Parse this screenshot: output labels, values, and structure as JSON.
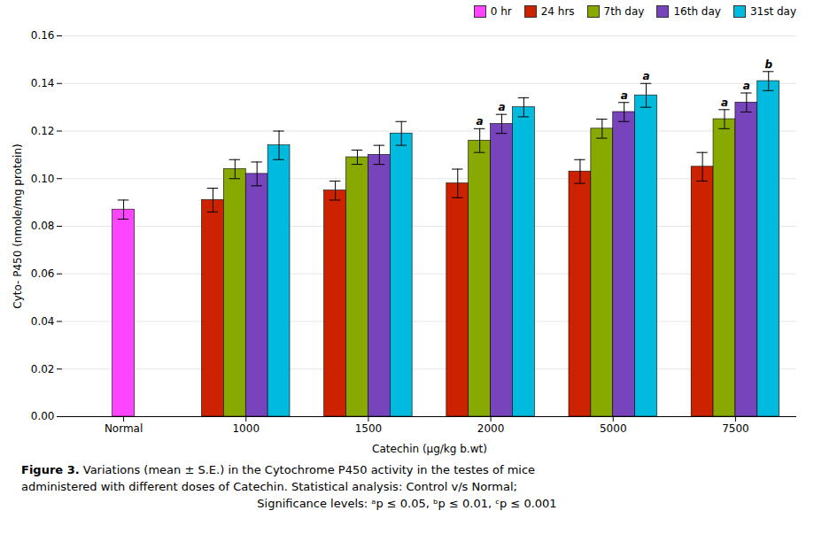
{
  "chart_data": {
    "type": "bar",
    "categories": [
      "Normal",
      "1000",
      "1500",
      "2000",
      "5000",
      "7500"
    ],
    "series": [
      {
        "name": "0 hr",
        "color": "#FF44FF",
        "values": [
          0.087,
          null,
          null,
          null,
          null,
          null
        ],
        "errors": [
          0.004,
          null,
          null,
          null,
          null,
          null
        ]
      },
      {
        "name": "24 hrs",
        "color": "#CC2200",
        "values": [
          null,
          0.091,
          0.095,
          0.098,
          0.103,
          0.105
        ],
        "errors": [
          null,
          0.005,
          0.004,
          0.006,
          0.005,
          0.006
        ]
      },
      {
        "name": "7th day",
        "color": "#88AA00",
        "values": [
          null,
          0.104,
          0.109,
          0.116,
          0.121,
          0.125
        ],
        "errors": [
          null,
          0.004,
          0.003,
          0.005,
          0.004,
          0.004
        ]
      },
      {
        "name": "16th day",
        "color": "#7744BB",
        "values": [
          null,
          0.102,
          0.11,
          0.123,
          0.128,
          0.132
        ],
        "errors": [
          null,
          0.005,
          0.004,
          0.004,
          0.004,
          0.004
        ]
      },
      {
        "name": "31st day",
        "color": "#00BBDD",
        "values": [
          null,
          0.114,
          0.119,
          0.13,
          0.135,
          0.141
        ],
        "errors": [
          null,
          0.006,
          0.005,
          0.004,
          0.005,
          0.004
        ]
      }
    ],
    "annotations": [
      {
        "category": "2000",
        "series": "7th day",
        "text": "a"
      },
      {
        "category": "2000",
        "series": "16th day",
        "text": "a"
      },
      {
        "category": "5000",
        "series": "16th day",
        "text": "a"
      },
      {
        "category": "5000",
        "series": "31st day",
        "text": "a"
      },
      {
        "category": "7500",
        "series": "7th day",
        "text": "a"
      },
      {
        "category": "7500",
        "series": "16th day",
        "text": "a"
      },
      {
        "category": "7500",
        "series": "31st day",
        "text": "b"
      }
    ],
    "ylabel": "Cyto- P450 (nmole/mg protein)",
    "xlabel": "Catechin (μg/kg b.wt)",
    "ylim": [
      0,
      0.16
    ],
    "yticks": [
      {
        "value": 0,
        "label": "0.00"
      },
      {
        "value": 0.02,
        "label": "0.02"
      },
      {
        "value": 0.04,
        "label": "0.04"
      },
      {
        "value": 0.06,
        "label": "0.06"
      },
      {
        "value": 0.08,
        "label": "0.08"
      },
      {
        "value": 0.1,
        "label": "0.10"
      },
      {
        "value": 0.12,
        "label": "0.12"
      },
      {
        "value": 0.14,
        "label": "0.14"
      },
      {
        "value": 0.16,
        "label": "0.16"
      }
    ],
    "grid": true,
    "legend": "upper right",
    "caption": [
      "Figure 3. Variations (mean ± S.E.) in the Cytochrome P450 activity in the testes of mice",
      "administered with different doses of Catechin.  Statistical analysis: Control v/s Normal;",
      "Significance levels: ᵃp ≤ 0.05, ᵇp ≤ 0.01, ᶜp  ≤ 0.001"
    ]
  }
}
